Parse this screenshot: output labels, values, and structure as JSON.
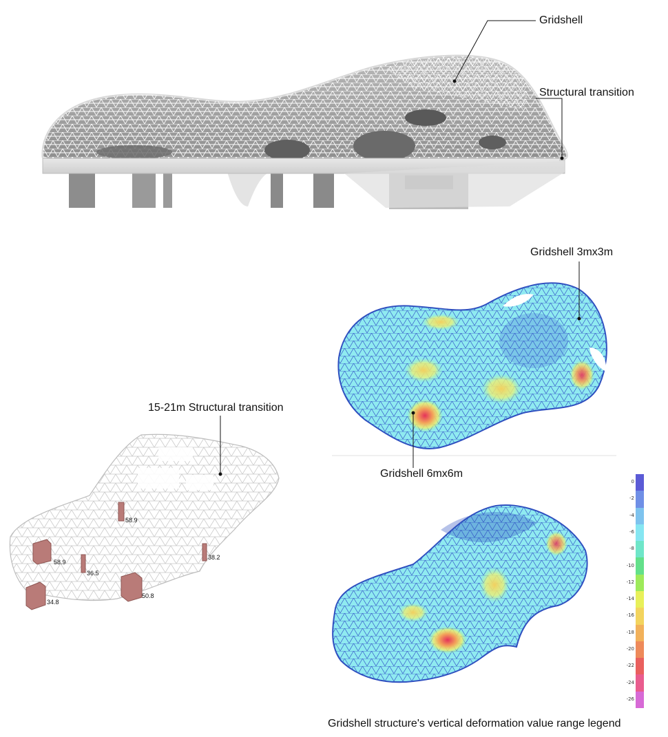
{
  "callouts": {
    "gridshell": "Gridshell",
    "structural_transition": "Structural transition",
    "gridshell_3m": "Gridshell 3mx3m",
    "gridshell_6m": "Gridshell 6mx6m",
    "transition_span": "15-21m Structural transition",
    "legend_caption": "Gridshell structure's vertical deformation value range legend"
  },
  "column_values": [
    "58.9",
    "58.9",
    "36.5",
    "38.2",
    "34.8",
    "50.8"
  ],
  "legend": {
    "ticks": [
      "0",
      "-2",
      "-4",
      "-6",
      "-8",
      "-10",
      "-12",
      "-14",
      "-16",
      "-18",
      "-20",
      "-22",
      "-24",
      "-26"
    ],
    "colors": [
      "#5b5bd6",
      "#6f8fe6",
      "#7ec3ee",
      "#86e6f2",
      "#6fe6c9",
      "#63e08a",
      "#9eea5a",
      "#e8f05a",
      "#f3d45e",
      "#f2b15a",
      "#ee8a5a",
      "#e9605e",
      "#e95c8e",
      "#d76ad6"
    ]
  }
}
